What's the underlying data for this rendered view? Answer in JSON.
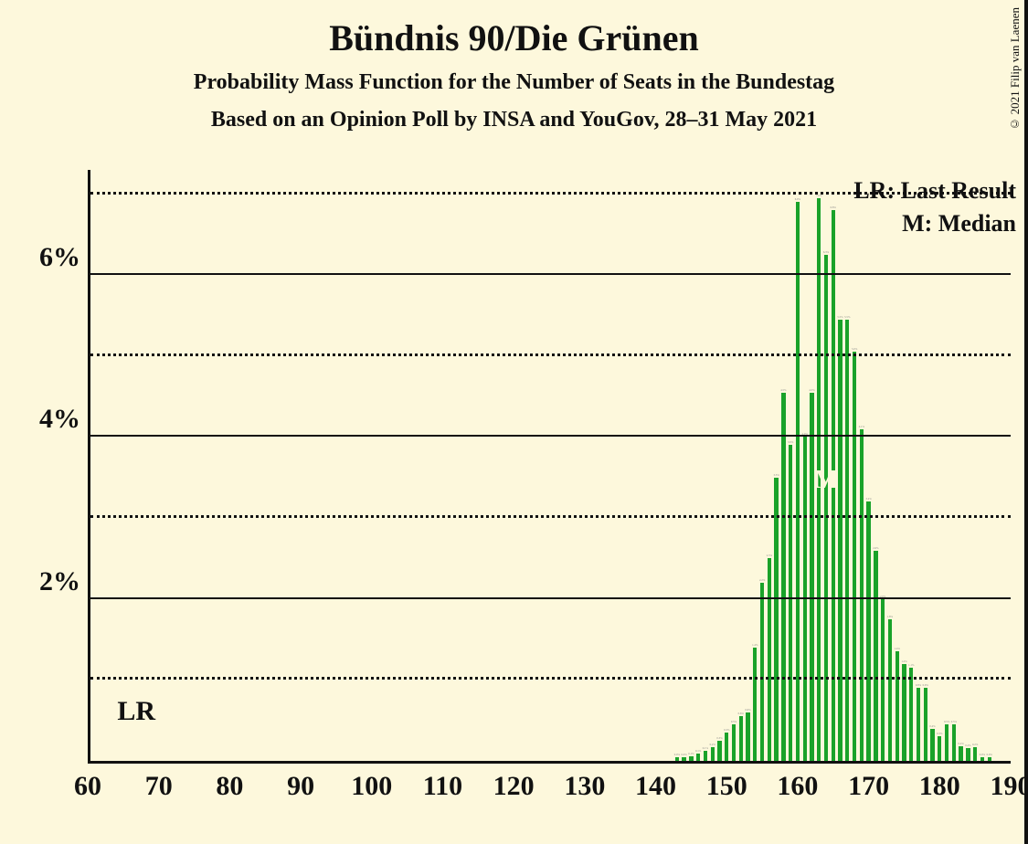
{
  "title": "Bündnis 90/Die Grünen",
  "subtitle1": "Probability Mass Function for the Number of Seats in the Bundestag",
  "subtitle2": "Based on an Opinion Poll by INSA and YouGov, 28–31 May 2021",
  "copyright": "© 2021 Filip van Laenen",
  "chart": {
    "type": "bar",
    "background_color": "#fdf8dc",
    "bar_color": "#19a229",
    "axis_color": "#111111",
    "grid_color": "#111111",
    "x_min": 60,
    "x_max": 190,
    "x_tick_step": 10,
    "x_ticks": [
      60,
      70,
      80,
      90,
      100,
      110,
      120,
      130,
      140,
      150,
      160,
      170,
      180,
      190
    ],
    "y_min": 0,
    "y_max": 7.3,
    "y_major_ticks": [
      0,
      2,
      4,
      6
    ],
    "y_minor_ticks": [
      1,
      3,
      5,
      7
    ],
    "y_tick_labels": [
      "2%",
      "4%",
      "6%"
    ],
    "bar_width_ratio": 0.55,
    "legend_lr": "LR: Last Result",
    "legend_m": "M: Median",
    "lr_marker": "LR",
    "m_marker": "M",
    "lr_x": 67,
    "median_x": 164,
    "data": [
      {
        "x": 143,
        "y": 0.04
      },
      {
        "x": 144,
        "y": 0.04
      },
      {
        "x": 145,
        "y": 0.06
      },
      {
        "x": 146,
        "y": 0.09
      },
      {
        "x": 147,
        "y": 0.12
      },
      {
        "x": 148,
        "y": 0.17
      },
      {
        "x": 149,
        "y": 0.25
      },
      {
        "x": 150,
        "y": 0.35
      },
      {
        "x": 151,
        "y": 0.45
      },
      {
        "x": 152,
        "y": 0.55
      },
      {
        "x": 153,
        "y": 0.6
      },
      {
        "x": 154,
        "y": 1.4
      },
      {
        "x": 155,
        "y": 2.2
      },
      {
        "x": 156,
        "y": 2.5
      },
      {
        "x": 157,
        "y": 3.5
      },
      {
        "x": 158,
        "y": 4.55
      },
      {
        "x": 159,
        "y": 3.9
      },
      {
        "x": 160,
        "y": 6.9
      },
      {
        "x": 161,
        "y": 4.0
      },
      {
        "x": 162,
        "y": 4.55
      },
      {
        "x": 163,
        "y": 6.95
      },
      {
        "x": 164,
        "y": 6.25
      },
      {
        "x": 165,
        "y": 6.8
      },
      {
        "x": 166,
        "y": 5.45
      },
      {
        "x": 167,
        "y": 5.45
      },
      {
        "x": 168,
        "y": 5.05
      },
      {
        "x": 169,
        "y": 4.1
      },
      {
        "x": 170,
        "y": 3.2
      },
      {
        "x": 171,
        "y": 2.6
      },
      {
        "x": 172,
        "y": 2.0
      },
      {
        "x": 173,
        "y": 1.75
      },
      {
        "x": 174,
        "y": 1.35
      },
      {
        "x": 175,
        "y": 1.2
      },
      {
        "x": 176,
        "y": 1.15
      },
      {
        "x": 177,
        "y": 0.9
      },
      {
        "x": 178,
        "y": 0.9
      },
      {
        "x": 179,
        "y": 0.4
      },
      {
        "x": 180,
        "y": 0.3
      },
      {
        "x": 181,
        "y": 0.45
      },
      {
        "x": 182,
        "y": 0.45
      },
      {
        "x": 183,
        "y": 0.18
      },
      {
        "x": 184,
        "y": 0.16
      },
      {
        "x": 185,
        "y": 0.17
      },
      {
        "x": 186,
        "y": 0.04
      },
      {
        "x": 187,
        "y": 0.04
      }
    ]
  },
  "fonts": {
    "title_size": 40,
    "subtitle_size": 24,
    "axis_label_size": 30,
    "legend_size": 26
  }
}
